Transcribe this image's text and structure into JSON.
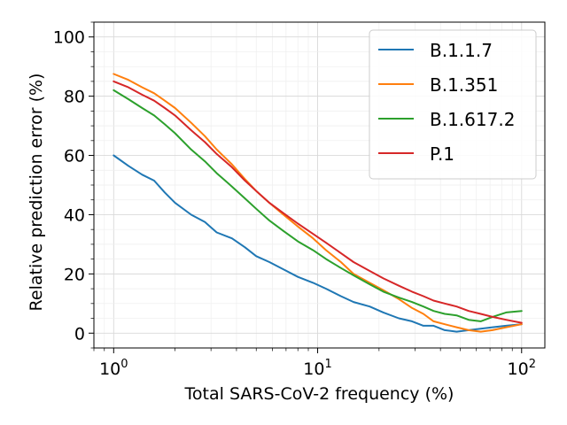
{
  "chart_data": {
    "type": "line",
    "title": "",
    "xlabel": "Total SARS-CoV-2 frequency (%)",
    "ylabel": "Relative prediction error (%)",
    "xscale": "log",
    "xlim": [
      0.8,
      130
    ],
    "ylim": [
      -5,
      105
    ],
    "xticks": [
      {
        "value": 1,
        "base": "10",
        "exp": "0"
      },
      {
        "value": 10,
        "base": "10",
        "exp": "1"
      },
      {
        "value": 100,
        "base": "10",
        "exp": "2"
      }
    ],
    "yticks": [
      {
        "value": 0,
        "label": "0"
      },
      {
        "value": 20,
        "label": "20"
      },
      {
        "value": 40,
        "label": "40"
      },
      {
        "value": 60,
        "label": "60"
      },
      {
        "value": 80,
        "label": "80"
      },
      {
        "value": 100,
        "label": "100"
      }
    ],
    "grid": true,
    "legend": "top-right",
    "x": [
      1.0,
      1.18,
      1.38,
      1.58,
      1.78,
      2.0,
      2.4,
      2.8,
      3.2,
      3.8,
      4.4,
      5.0,
      5.8,
      6.8,
      8.0,
      9.5,
      11.0,
      13.0,
      15.0,
      18.0,
      21.0,
      25.0,
      29.0,
      33.0,
      37.0,
      42.0,
      48.0,
      55.0,
      63.0,
      72.0,
      84.0,
      100.0
    ],
    "series": [
      {
        "name": "B.1.1.7",
        "color": "#1f77b4",
        "values": [
          60.0,
          56.5,
          53.5,
          51.5,
          47.5,
          44.0,
          40.0,
          37.5,
          34.0,
          32.0,
          29.0,
          26.0,
          24.0,
          21.5,
          19.0,
          17.0,
          15.0,
          12.5,
          10.5,
          9.0,
          7.0,
          5.0,
          4.0,
          2.5,
          2.5,
          1.0,
          0.5,
          1.0,
          1.5,
          2.0,
          2.5,
          3.0
        ]
      },
      {
        "name": "B.1.351",
        "color": "#ff7f0e",
        "values": [
          87.5,
          85.5,
          83.0,
          81.0,
          78.5,
          76.0,
          71.0,
          66.5,
          62.0,
          57.0,
          52.0,
          48.0,
          44.0,
          40.0,
          36.0,
          32.0,
          28.0,
          24.0,
          20.0,
          17.0,
          14.5,
          11.5,
          8.5,
          6.5,
          4.0,
          3.0,
          2.0,
          1.0,
          0.5,
          1.0,
          2.0,
          3.0
        ]
      },
      {
        "name": "B.1.617.2",
        "color": "#2ca02c",
        "values": [
          82.0,
          79.0,
          76.0,
          73.5,
          70.5,
          67.5,
          62.0,
          58.0,
          54.0,
          49.5,
          45.5,
          42.0,
          38.0,
          34.5,
          31.0,
          28.0,
          25.0,
          22.0,
          19.5,
          16.5,
          14.0,
          12.0,
          10.5,
          9.0,
          7.5,
          6.5,
          6.0,
          4.5,
          4.0,
          5.5,
          7.0,
          7.5
        ]
      },
      {
        "name": "P.1",
        "color": "#d62728",
        "values": [
          85.0,
          83.0,
          80.5,
          78.5,
          76.0,
          73.5,
          68.5,
          64.5,
          60.5,
          56.0,
          51.5,
          48.0,
          44.0,
          40.5,
          37.0,
          33.5,
          30.5,
          27.0,
          24.0,
          21.0,
          18.5,
          16.0,
          14.0,
          12.5,
          11.0,
          10.0,
          9.0,
          7.5,
          6.5,
          5.5,
          4.5,
          3.5
        ]
      }
    ]
  }
}
